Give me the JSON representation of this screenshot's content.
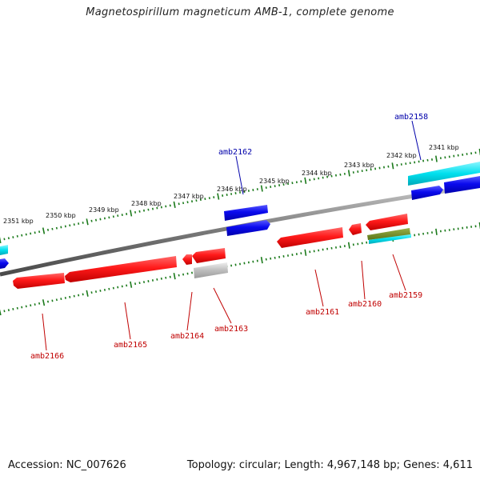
{
  "title": "Magnetospirillum magneticum AMB-1, complete genome",
  "footer": {
    "accession": "Accession: NC_007626",
    "summary": "Topology: circular; Length: 4,967,148 bp; Genes: 4,611"
  },
  "colors": {
    "forward_gene": "#0000e6",
    "reverse_gene": "#e60000",
    "rna_gene": "#00d5e0",
    "pseudo_gene": "#bcbcbc",
    "other_gene": "#6e8a1e",
    "forward_label": "#0000aa",
    "reverse_label": "#c00000",
    "ticks": "#1b7a1b",
    "backbone": "#808080"
  },
  "kbp_labels": [
    "2341 kbp",
    "2342 kbp",
    "2343 kbp",
    "2344 kbp",
    "2345 kbp",
    "2346 kbp",
    "2347 kbp",
    "2348 kbp",
    "2349 kbp",
    "2350 kbp",
    "2351 kbp"
  ],
  "forward_labels": [
    "amb2158",
    "amb2162"
  ],
  "reverse_labels": [
    "amb2159",
    "amb2160",
    "amb2161",
    "amb2163",
    "amb2164",
    "amb2165",
    "amb2166"
  ]
}
